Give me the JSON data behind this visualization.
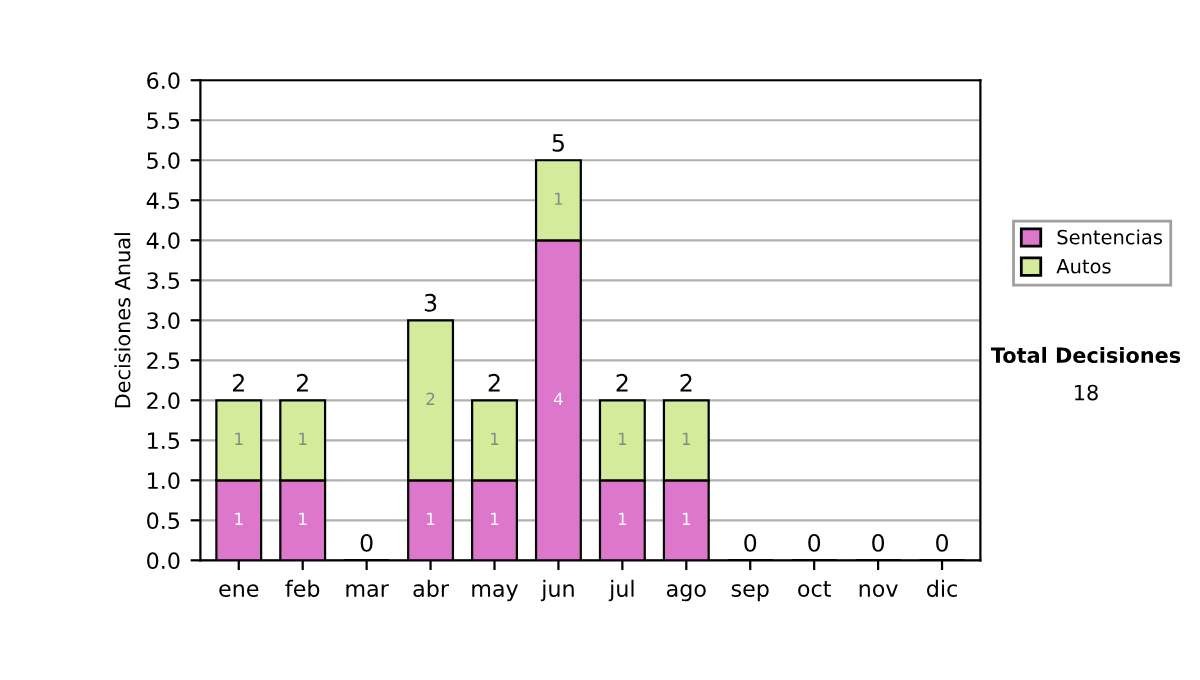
{
  "chart_data": {
    "type": "bar",
    "stacked": true,
    "ylabel": "Decisiones Anual",
    "categories": [
      "ene",
      "feb",
      "mar",
      "abr",
      "may",
      "jun",
      "jul",
      "ago",
      "sep",
      "oct",
      "nov",
      "dic"
    ],
    "series": [
      {
        "name": "Sentencias",
        "color": "#dd77cc",
        "values": [
          1,
          1,
          0,
          1,
          1,
          4,
          1,
          1,
          0,
          0,
          0,
          0
        ],
        "value_labels": [
          "1",
          "1",
          null,
          "1",
          "1",
          "4",
          "1",
          "1",
          null,
          null,
          null,
          null
        ]
      },
      {
        "name": "Autos",
        "color": "#d4eb9c",
        "values": [
          1,
          1,
          0,
          2,
          1,
          1,
          1,
          1,
          0,
          0,
          0,
          0
        ],
        "value_labels": [
          "1",
          "1",
          null,
          "2",
          "1",
          "1",
          "1",
          "1",
          null,
          null,
          null,
          null
        ]
      }
    ],
    "totals": [
      "2",
      "2",
      "0",
      "3",
      "2",
      "5",
      "2",
      "2",
      "0",
      "0",
      "0",
      "0"
    ],
    "ylim": [
      0,
      6
    ],
    "yticks": [
      {
        "value": 0,
        "label": "0.0"
      },
      {
        "value": 0.5,
        "label": "0.5"
      },
      {
        "value": 1,
        "label": "1.0"
      },
      {
        "value": 1.5,
        "label": "1.5"
      },
      {
        "value": 2,
        "label": "2.0"
      },
      {
        "value": 2.5,
        "label": "2.5"
      },
      {
        "value": 3,
        "label": "3.0"
      },
      {
        "value": 3.5,
        "label": "3.5"
      },
      {
        "value": 4,
        "label": "4.0"
      },
      {
        "value": 4.5,
        "label": "4.5"
      },
      {
        "value": 5,
        "label": "5.0"
      },
      {
        "value": 5.5,
        "label": "5.5"
      },
      {
        "value": 6,
        "label": "6.0"
      }
    ],
    "grid": "y",
    "legend": "right",
    "annotations": [
      "Total Decisiones",
      "18"
    ]
  }
}
